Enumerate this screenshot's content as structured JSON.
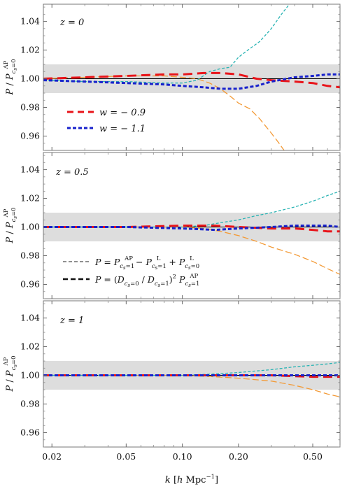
{
  "figure": {
    "ylabel_main": "P / P",
    "ylabel_sup": "AP",
    "ylabel_sub": "c",
    "ylabel_subsub": "s",
    "ylabel_subtail": "=0",
    "xlabel": "k [h Mpc⁻¹]"
  },
  "legend_w": [
    {
      "label": "w = − 0.9",
      "color": "#e8141a"
    },
    {
      "label": "w = − 1.1",
      "color": "#1822cc"
    }
  ],
  "legend_method": [
    {
      "label": "P = P^AP_{cs=1} − P^L_{cs=1} + P^L_{cs=0}"
    },
    {
      "label": "P = (D_{cs=0} / D_{cs=1})² P^AP_{cs=1}"
    }
  ],
  "colors": {
    "w09_thin": "#f39a36",
    "w11_thin": "#2ab4b4",
    "band": "#dddddd"
  },
  "chart_data": [
    {
      "type": "line",
      "annotation": "z = 0",
      "xscale": "log",
      "xlim": [
        0.018,
        0.7
      ],
      "ylim": [
        0.95,
        1.052
      ],
      "xticks": [
        "0.02",
        "0.05",
        "0.10",
        "0.20",
        "0.50"
      ],
      "xtick_values": [
        0.02,
        0.05,
        0.1,
        0.2,
        0.5
      ],
      "yticks": [
        "0.96",
        "0.98",
        "1.00",
        "1.02",
        "1.04"
      ],
      "ytick_values": [
        0.96,
        0.98,
        1.0,
        1.02,
        1.04
      ],
      "band": [
        0.99,
        1.01
      ],
      "reference_line": 1.0,
      "series": [
        {
          "name": "w = − 0.9",
          "style": "thick",
          "color": "#e8141a",
          "x": [
            0.018,
            0.03,
            0.05,
            0.08,
            0.1,
            0.13,
            0.16,
            0.2,
            0.25,
            0.3,
            0.4,
            0.5,
            0.6,
            0.7
          ],
          "y": [
            1.0,
            1.001,
            1.002,
            1.003,
            1.003,
            1.004,
            1.004,
            1.003,
            1.0,
            0.999,
            0.998,
            0.997,
            0.995,
            0.994
          ]
        },
        {
          "name": "w = − 1.1",
          "style": "thick",
          "color": "#1822cc",
          "x": [
            0.018,
            0.03,
            0.05,
            0.08,
            0.1,
            0.13,
            0.16,
            0.2,
            0.25,
            0.3,
            0.4,
            0.5,
            0.6,
            0.7
          ],
          "y": [
            0.999,
            0.998,
            0.997,
            0.996,
            0.995,
            0.994,
            0.993,
            0.993,
            0.995,
            0.998,
            1.001,
            1.002,
            1.003,
            1.003
          ]
        },
        {
          "style": "thin",
          "color": "#f39a36",
          "x": [
            0.018,
            0.03,
            0.05,
            0.08,
            0.1,
            0.12,
            0.14,
            0.16,
            0.18,
            0.2,
            0.23,
            0.26,
            0.3,
            0.33,
            0.36
          ],
          "y": [
            1.0,
            1.001,
            1.002,
            1.002,
            1.001,
            1.0,
            0.997,
            0.993,
            0.988,
            0.983,
            0.979,
            0.972,
            0.962,
            0.955,
            0.948
          ]
        },
        {
          "style": "thin",
          "color": "#2ab4b4",
          "x": [
            0.018,
            0.03,
            0.05,
            0.08,
            0.1,
            0.12,
            0.14,
            0.16,
            0.18,
            0.2,
            0.23,
            0.26,
            0.3,
            0.34,
            0.38
          ],
          "y": [
            0.999,
            0.998,
            0.998,
            0.997,
            0.997,
            0.999,
            1.005,
            1.007,
            1.008,
            1.015,
            1.021,
            1.026,
            1.035,
            1.045,
            1.053
          ]
        }
      ]
    },
    {
      "type": "line",
      "annotation": "z = 0.5",
      "xscale": "log",
      "xlim": [
        0.018,
        0.7
      ],
      "ylim": [
        0.95,
        1.052
      ],
      "xticks": [
        "0.02",
        "0.05",
        "0.10",
        "0.20",
        "0.50"
      ],
      "xtick_values": [
        0.02,
        0.05,
        0.1,
        0.2,
        0.5
      ],
      "yticks": [
        "0.96",
        "0.98",
        "1.00",
        "1.02",
        "1.04"
      ],
      "ytick_values": [
        0.96,
        0.98,
        1.0,
        1.02,
        1.04
      ],
      "band": [
        0.99,
        1.01
      ],
      "reference_line": 1.0,
      "series": [
        {
          "name": "w = − 0.9",
          "style": "thick",
          "color": "#e8141a",
          "x": [
            0.018,
            0.05,
            0.1,
            0.15,
            0.2,
            0.3,
            0.4,
            0.5,
            0.6,
            0.7
          ],
          "y": [
            1.0,
            1.0,
            1.001,
            1.001,
            1.0,
            0.999,
            0.999,
            0.998,
            0.997,
            0.997
          ]
        },
        {
          "name": "w = − 1.1",
          "style": "thick",
          "color": "#1822cc",
          "x": [
            0.018,
            0.05,
            0.1,
            0.15,
            0.2,
            0.3,
            0.4,
            0.5,
            0.6,
            0.7
          ],
          "y": [
            1.0,
            1.0,
            0.999,
            0.998,
            0.999,
            1.0,
            1.001,
            1.001,
            1.001,
            1.0
          ]
        },
        {
          "style": "thin",
          "color": "#f39a36",
          "x": [
            0.018,
            0.05,
            0.1,
            0.13,
            0.16,
            0.2,
            0.25,
            0.3,
            0.4,
            0.5,
            0.6,
            0.7
          ],
          "y": [
            1.0,
            1.0,
            1.0,
            0.999,
            0.997,
            0.994,
            0.99,
            0.986,
            0.981,
            0.976,
            0.971,
            0.967
          ]
        },
        {
          "style": "thin",
          "color": "#2ab4b4",
          "x": [
            0.018,
            0.05,
            0.1,
            0.13,
            0.16,
            0.2,
            0.25,
            0.3,
            0.4,
            0.5,
            0.6,
            0.7
          ],
          "y": [
            1.0,
            1.0,
            1.0,
            1.001,
            1.003,
            1.005,
            1.008,
            1.01,
            1.014,
            1.018,
            1.022,
            1.025
          ]
        }
      ]
    },
    {
      "type": "line",
      "annotation": "z = 1",
      "xscale": "log",
      "xlim": [
        0.018,
        0.7
      ],
      "ylim": [
        0.95,
        1.052
      ],
      "xticks": [
        "0.02",
        "0.05",
        "0.10",
        "0.20",
        "0.50"
      ],
      "xtick_values": [
        0.02,
        0.05,
        0.1,
        0.2,
        0.5
      ],
      "yticks": [
        "0.96",
        "0.98",
        "1.00",
        "1.02",
        "1.04"
      ],
      "ytick_values": [
        0.96,
        0.98,
        1.0,
        1.02,
        1.04
      ],
      "band": [
        0.99,
        1.01
      ],
      "reference_line": 1.0,
      "series": [
        {
          "name": "w = − 0.9",
          "style": "thick",
          "color": "#e8141a",
          "x": [
            0.018,
            0.05,
            0.1,
            0.2,
            0.3,
            0.5,
            0.7
          ],
          "y": [
            1.0,
            1.0,
            1.0,
            1.0,
            1.0,
            0.999,
            0.999
          ]
        },
        {
          "name": "w = − 1.1",
          "style": "thick",
          "color": "#1822cc",
          "x": [
            0.018,
            0.05,
            0.1,
            0.2,
            0.3,
            0.5,
            0.7
          ],
          "y": [
            1.0,
            1.0,
            1.0,
            1.0,
            1.0,
            1.0,
            1.0
          ]
        },
        {
          "style": "thin",
          "color": "#f39a36",
          "x": [
            0.018,
            0.05,
            0.1,
            0.15,
            0.2,
            0.3,
            0.4,
            0.5,
            0.6,
            0.7
          ],
          "y": [
            1.0,
            1.0,
            1.0,
            0.999,
            0.998,
            0.996,
            0.993,
            0.99,
            0.987,
            0.985
          ]
        },
        {
          "style": "thin",
          "color": "#2ab4b4",
          "x": [
            0.018,
            0.05,
            0.1,
            0.15,
            0.2,
            0.3,
            0.4,
            0.5,
            0.6,
            0.7
          ],
          "y": [
            1.0,
            1.0,
            1.0,
            1.001,
            1.002,
            1.004,
            1.006,
            1.007,
            1.008,
            1.009
          ]
        }
      ]
    }
  ]
}
